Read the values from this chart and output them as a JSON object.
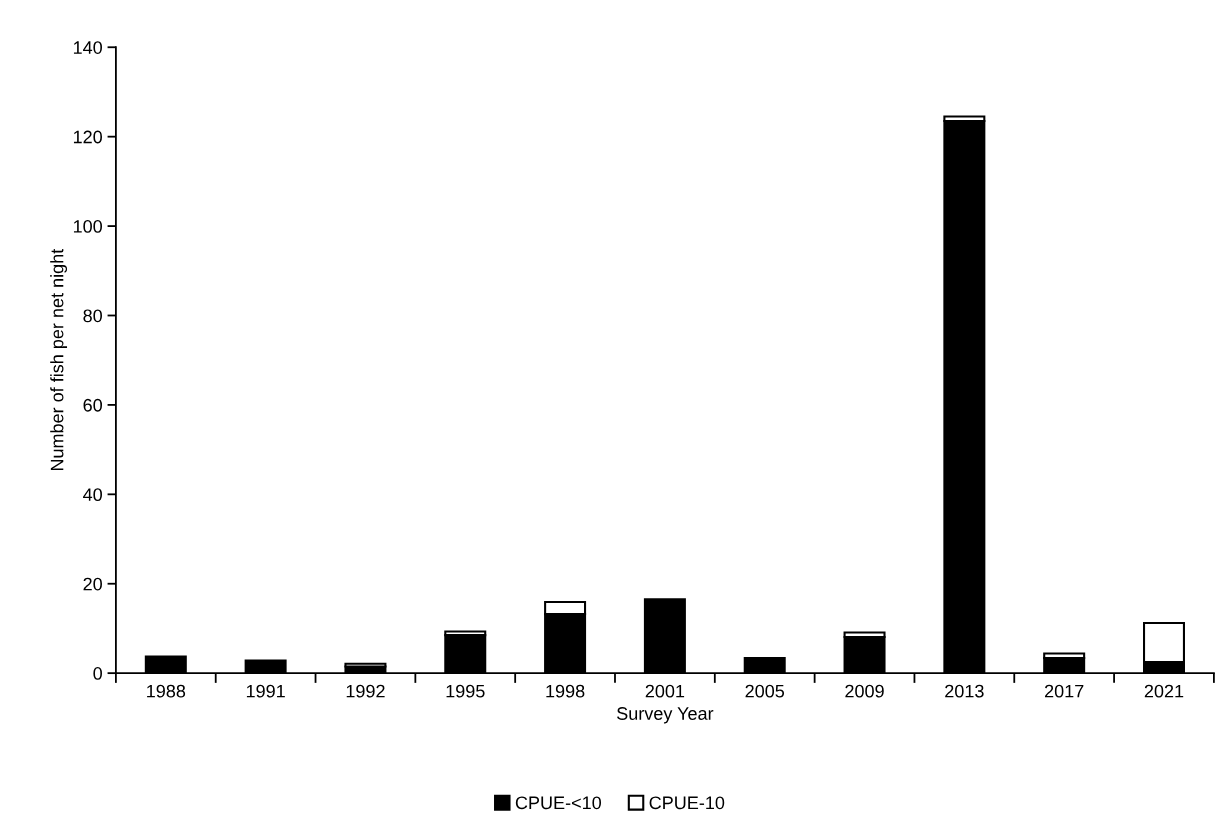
{
  "chart_data": {
    "type": "bar",
    "stacked": true,
    "xlabel": "Survey Year",
    "ylabel": "Number of fish per net night",
    "categories": [
      "1988",
      "1991",
      "1992",
      "1995",
      "1998",
      "2001",
      "2005",
      "2009",
      "2013",
      "2017",
      "2021"
    ],
    "series": [
      {
        "name": "CPUE-<10",
        "color": "#000000",
        "values": [
          3.7,
          2.8,
          1.5,
          8.5,
          13.2,
          16.5,
          3.4,
          8.1,
          123.5,
          3.4,
          2.5
        ]
      },
      {
        "name": "CPUE-10",
        "color": "#ffffff",
        "values": [
          null,
          null,
          0.6,
          0.8,
          2.7,
          null,
          null,
          1.0,
          1.0,
          1.0,
          8.7
        ]
      }
    ],
    "ylim": [
      0,
      140
    ],
    "yticks": [
      0,
      20,
      40,
      60,
      80,
      100,
      120,
      140
    ],
    "grid": false,
    "legend": "bottom"
  }
}
